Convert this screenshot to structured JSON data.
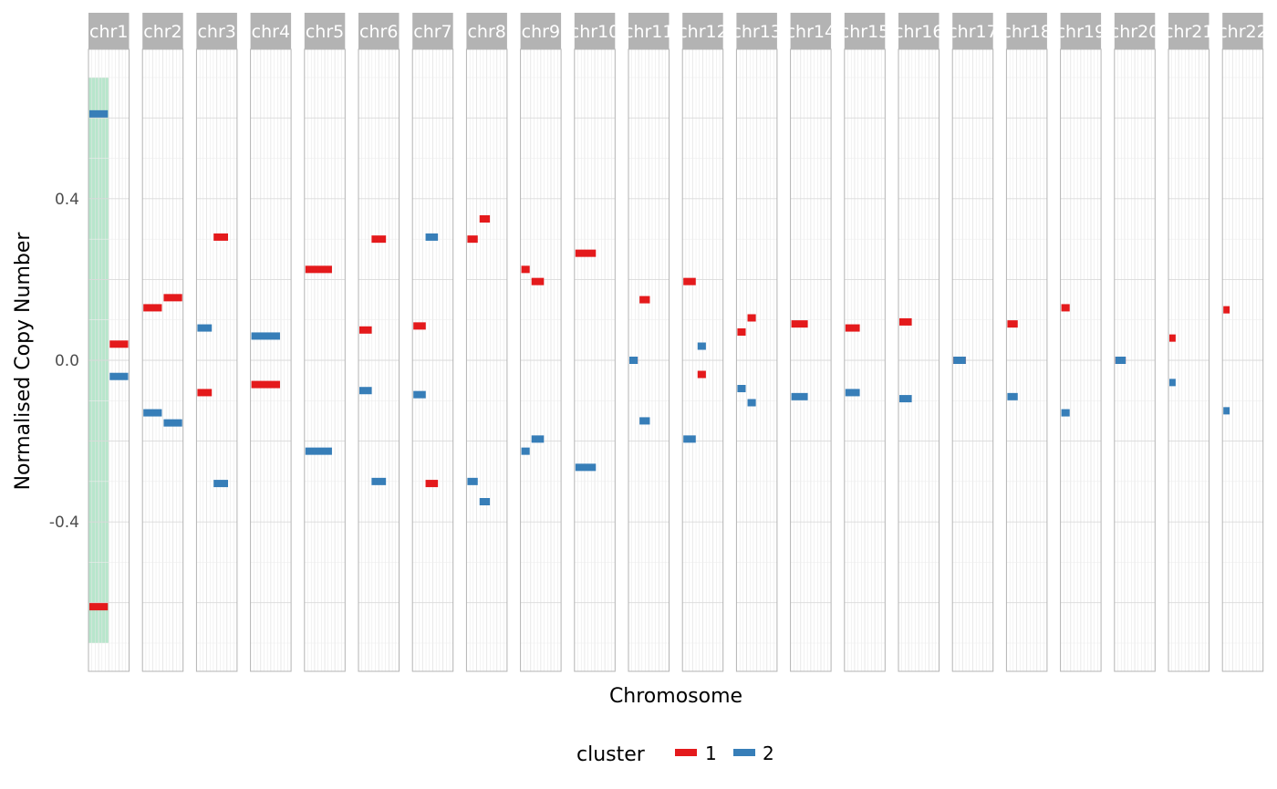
{
  "chart_data": {
    "type": "scatter",
    "facet_labels": [
      "chr1",
      "chr2",
      "chr3",
      "chr4",
      "chr5",
      "chr6",
      "chr7",
      "chr8",
      "chr9",
      "chr10",
      "chr11",
      "chr12",
      "chr13",
      "chr14",
      "chr15",
      "chr16",
      "chr17",
      "chr18",
      "chr19",
      "chr20",
      "chr21",
      "chr22"
    ],
    "xlabel": "Chromosome",
    "ylabel": "Normalised Copy Number",
    "ylim": [
      -0.77,
      0.77
    ],
    "y_ticks": [
      0.4,
      0.0,
      -0.4
    ],
    "y_tick_labels": [
      "0.4",
      "0.0",
      "-0.4"
    ],
    "legend": {
      "title": "cluster",
      "placement": "bottom",
      "entries": [
        {
          "label": "1",
          "color": "#E41A1C"
        },
        {
          "label": "2",
          "color": "#377EB8"
        }
      ]
    },
    "highlight": {
      "chromosome": "chr1",
      "x_range": [
        0.0,
        0.5
      ],
      "y_range": [
        -0.7,
        0.7
      ],
      "color": "#B8E6CC"
    },
    "segments": [
      {
        "chr": "chr1",
        "cluster": 1,
        "start": 0.0,
        "end": 0.5,
        "value": -0.61
      },
      {
        "chr": "chr1",
        "cluster": 2,
        "start": 0.0,
        "end": 0.5,
        "value": 0.61
      },
      {
        "chr": "chr1",
        "cluster": 1,
        "start": 0.5,
        "end": 1.0,
        "value": 0.04
      },
      {
        "chr": "chr1",
        "cluster": 2,
        "start": 0.5,
        "end": 1.0,
        "value": -0.04
      },
      {
        "chr": "chr2",
        "cluster": 1,
        "start": 0.0,
        "end": 0.5,
        "value": 0.13
      },
      {
        "chr": "chr2",
        "cluster": 2,
        "start": 0.0,
        "end": 0.5,
        "value": -0.13
      },
      {
        "chr": "chr2",
        "cluster": 1,
        "start": 0.5,
        "end": 1.0,
        "value": 0.155
      },
      {
        "chr": "chr2",
        "cluster": 2,
        "start": 0.5,
        "end": 1.0,
        "value": -0.155
      },
      {
        "chr": "chr3",
        "cluster": 1,
        "start": 0.0,
        "end": 0.4,
        "value": -0.08
      },
      {
        "chr": "chr3",
        "cluster": 2,
        "start": 0.0,
        "end": 0.4,
        "value": 0.08
      },
      {
        "chr": "chr3",
        "cluster": 1,
        "start": 0.4,
        "end": 0.8,
        "value": 0.305
      },
      {
        "chr": "chr3",
        "cluster": 2,
        "start": 0.4,
        "end": 0.8,
        "value": -0.305
      },
      {
        "chr": "chr4",
        "cluster": 1,
        "start": 0.0,
        "end": 0.75,
        "value": -0.06
      },
      {
        "chr": "chr4",
        "cluster": 2,
        "start": 0.0,
        "end": 0.75,
        "value": 0.06
      },
      {
        "chr": "chr5",
        "cluster": 1,
        "start": 0.0,
        "end": 0.7,
        "value": 0.225
      },
      {
        "chr": "chr5",
        "cluster": 2,
        "start": 0.0,
        "end": 0.7,
        "value": -0.225
      },
      {
        "chr": "chr6",
        "cluster": 1,
        "start": 0.0,
        "end": 0.35,
        "value": 0.075
      },
      {
        "chr": "chr6",
        "cluster": 2,
        "start": 0.0,
        "end": 0.35,
        "value": -0.075
      },
      {
        "chr": "chr6",
        "cluster": 1,
        "start": 0.3,
        "end": 0.7,
        "value": 0.3
      },
      {
        "chr": "chr6",
        "cluster": 2,
        "start": 0.3,
        "end": 0.7,
        "value": -0.3
      },
      {
        "chr": "chr7",
        "cluster": 1,
        "start": 0.0,
        "end": 0.35,
        "value": 0.085
      },
      {
        "chr": "chr7",
        "cluster": 2,
        "start": 0.0,
        "end": 0.35,
        "value": -0.085
      },
      {
        "chr": "chr7",
        "cluster": 1,
        "start": 0.3,
        "end": 0.65,
        "value": -0.305
      },
      {
        "chr": "chr7",
        "cluster": 2,
        "start": 0.3,
        "end": 0.65,
        "value": 0.305
      },
      {
        "chr": "chr8",
        "cluster": 1,
        "start": 0.0,
        "end": 0.3,
        "value": 0.3
      },
      {
        "chr": "chr8",
        "cluster": 2,
        "start": 0.0,
        "end": 0.3,
        "value": -0.3
      },
      {
        "chr": "chr8",
        "cluster": 1,
        "start": 0.3,
        "end": 0.6,
        "value": 0.35
      },
      {
        "chr": "chr8",
        "cluster": 2,
        "start": 0.3,
        "end": 0.6,
        "value": -0.35
      },
      {
        "chr": "chr9",
        "cluster": 1,
        "start": 0.0,
        "end": 0.25,
        "value": 0.225
      },
      {
        "chr": "chr9",
        "cluster": 2,
        "start": 0.0,
        "end": 0.25,
        "value": -0.225
      },
      {
        "chr": "chr9",
        "cluster": 1,
        "start": 0.25,
        "end": 0.6,
        "value": 0.195
      },
      {
        "chr": "chr9",
        "cluster": 2,
        "start": 0.25,
        "end": 0.6,
        "value": -0.195
      },
      {
        "chr": "chr10",
        "cluster": 1,
        "start": 0.0,
        "end": 0.55,
        "value": 0.265
      },
      {
        "chr": "chr10",
        "cluster": 2,
        "start": 0.0,
        "end": 0.55,
        "value": -0.265
      },
      {
        "chr": "chr11",
        "cluster": 1,
        "start": 0.0,
        "end": 0.25,
        "value": 0.0
      },
      {
        "chr": "chr11",
        "cluster": 2,
        "start": 0.0,
        "end": 0.25,
        "value": 0.0
      },
      {
        "chr": "chr11",
        "cluster": 1,
        "start": 0.25,
        "end": 0.55,
        "value": 0.15
      },
      {
        "chr": "chr11",
        "cluster": 2,
        "start": 0.25,
        "end": 0.55,
        "value": -0.15
      },
      {
        "chr": "chr12",
        "cluster": 1,
        "start": 0.0,
        "end": 0.35,
        "value": 0.195
      },
      {
        "chr": "chr12",
        "cluster": 2,
        "start": 0.0,
        "end": 0.35,
        "value": -0.195
      },
      {
        "chr": "chr12",
        "cluster": 1,
        "start": 0.35,
        "end": 0.6,
        "value": -0.035
      },
      {
        "chr": "chr12",
        "cluster": 2,
        "start": 0.35,
        "end": 0.6,
        "value": 0.035
      },
      {
        "chr": "chr13",
        "cluster": 1,
        "start": 0.0,
        "end": 0.25,
        "value": 0.07
      },
      {
        "chr": "chr13",
        "cluster": 2,
        "start": 0.0,
        "end": 0.25,
        "value": -0.07
      },
      {
        "chr": "chr13",
        "cluster": 1,
        "start": 0.25,
        "end": 0.5,
        "value": 0.105
      },
      {
        "chr": "chr13",
        "cluster": 2,
        "start": 0.25,
        "end": 0.5,
        "value": -0.105
      },
      {
        "chr": "chr14",
        "cluster": 1,
        "start": 0.0,
        "end": 0.45,
        "value": 0.09
      },
      {
        "chr": "chr14",
        "cluster": 2,
        "start": 0.0,
        "end": 0.45,
        "value": -0.09
      },
      {
        "chr": "chr15",
        "cluster": 1,
        "start": 0.0,
        "end": 0.4,
        "value": 0.08
      },
      {
        "chr": "chr15",
        "cluster": 2,
        "start": 0.0,
        "end": 0.4,
        "value": -0.08
      },
      {
        "chr": "chr16",
        "cluster": 1,
        "start": 0.0,
        "end": 0.35,
        "value": 0.095
      },
      {
        "chr": "chr16",
        "cluster": 2,
        "start": 0.0,
        "end": 0.35,
        "value": -0.095
      },
      {
        "chr": "chr17",
        "cluster": 1,
        "start": 0.0,
        "end": 0.35,
        "value": 0.0
      },
      {
        "chr": "chr17",
        "cluster": 2,
        "start": 0.0,
        "end": 0.35,
        "value": 0.0
      },
      {
        "chr": "chr18",
        "cluster": 1,
        "start": 0.0,
        "end": 0.3,
        "value": 0.09
      },
      {
        "chr": "chr18",
        "cluster": 2,
        "start": 0.0,
        "end": 0.3,
        "value": -0.09
      },
      {
        "chr": "chr19",
        "cluster": 1,
        "start": 0.0,
        "end": 0.25,
        "value": 0.13
      },
      {
        "chr": "chr19",
        "cluster": 2,
        "start": 0.0,
        "end": 0.25,
        "value": -0.13
      },
      {
        "chr": "chr20",
        "cluster": 1,
        "start": 0.0,
        "end": 0.3,
        "value": 0.0
      },
      {
        "chr": "chr20",
        "cluster": 2,
        "start": 0.0,
        "end": 0.3,
        "value": 0.0
      },
      {
        "chr": "chr21",
        "cluster": 1,
        "start": 0.0,
        "end": 0.2,
        "value": 0.055
      },
      {
        "chr": "chr21",
        "cluster": 2,
        "start": 0.0,
        "end": 0.2,
        "value": -0.055
      },
      {
        "chr": "chr22",
        "cluster": 1,
        "start": 0.0,
        "end": 0.2,
        "value": 0.125
      },
      {
        "chr": "chr22",
        "cluster": 2,
        "start": 0.0,
        "end": 0.2,
        "value": -0.125
      }
    ],
    "colors": {
      "panel_border": "#B3B3B3",
      "strip_fill": "#B3B3B3",
      "grid": "#E6E6E6"
    }
  }
}
